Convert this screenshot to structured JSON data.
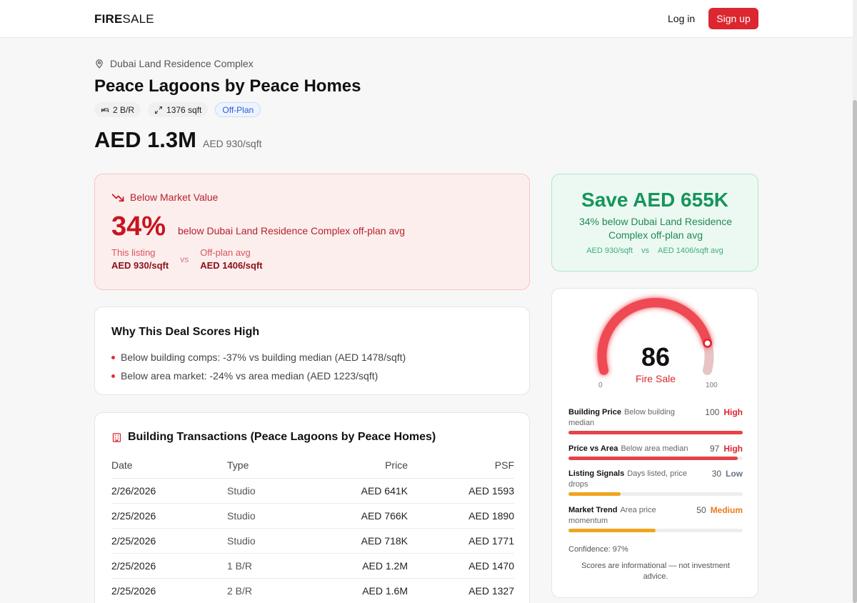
{
  "header": {
    "logo_bold": "FIRE",
    "logo_light": "SALE",
    "login_label": "Log in",
    "signup_label": "Sign up"
  },
  "listing": {
    "location": "Dubai Land Residence Complex",
    "title": "Peace Lagoons by Peace Homes",
    "beds": "2 B/R",
    "size": "1376 sqft",
    "status": "Off-Plan",
    "price": "AED 1.3M",
    "price_psf": "AED 930/sqft"
  },
  "below_market": {
    "heading": "Below Market Value",
    "percent": "34%",
    "description": "below Dubai Land Residence Complex off-plan avg",
    "this_label": "This listing",
    "this_value": "AED 930/sqft",
    "vs": "vs",
    "avg_label": "Off-plan avg",
    "avg_value": "AED 1406/sqft"
  },
  "why": {
    "heading": "Why This Deal Scores High",
    "items": [
      "Below building comps: -37% vs building median (AED 1478/sqft)",
      "Below area market: -24% vs area median (AED 1223/sqft)"
    ]
  },
  "transactions": {
    "heading": "Building Transactions (Peace Lagoons by Peace Homes)",
    "columns": [
      "Date",
      "Type",
      "Price",
      "PSF"
    ],
    "rows": [
      [
        "2/26/2026",
        "Studio",
        "AED 641K",
        "AED 1593"
      ],
      [
        "2/25/2026",
        "Studio",
        "AED 766K",
        "AED 1890"
      ],
      [
        "2/25/2026",
        "Studio",
        "AED 718K",
        "AED 1771"
      ],
      [
        "2/25/2026",
        "1 B/R",
        "AED 1.2M",
        "AED 1470"
      ],
      [
        "2/25/2026",
        "2 B/R",
        "AED 1.6M",
        "AED 1327"
      ]
    ]
  },
  "savings": {
    "amount": "Save AED 655K",
    "subtitle": "34% below Dubai Land Residence Complex off-plan avg",
    "this_psf": "AED 930/sqft",
    "vs": "vs",
    "avg_psf": "AED 1406/sqft avg"
  },
  "score": {
    "value": "86",
    "value_fraction": 0.86,
    "label": "Fire Sale",
    "min_label": "0",
    "max_label": "100",
    "metrics": [
      {
        "name": "Building Price",
        "desc": "Below building median",
        "score": "100",
        "level": "High",
        "fraction": 1.0,
        "color": "#e5424a",
        "level_color": "#dc2630"
      },
      {
        "name": "Price vs Area",
        "desc": "Below area median",
        "score": "97",
        "level": "High",
        "fraction": 0.97,
        "color": "#e5424a",
        "level_color": "#dc2630"
      },
      {
        "name": "Listing Signals",
        "desc": "Days listed, price drops",
        "score": "30",
        "level": "Low",
        "fraction": 0.3,
        "color": "#f0a51c",
        "level_color": "#64748b"
      },
      {
        "name": "Market Trend",
        "desc": "Area price momentum",
        "score": "50",
        "level": "Medium",
        "fraction": 0.5,
        "color": "#f0a51c",
        "level_color": "#ea7c1a"
      }
    ],
    "confidence": "Confidence: 97%",
    "disclaimer": "Scores are informational — not investment advice."
  },
  "colors": {
    "brand_red": "#dc2630",
    "savings_green": "#16955a"
  }
}
